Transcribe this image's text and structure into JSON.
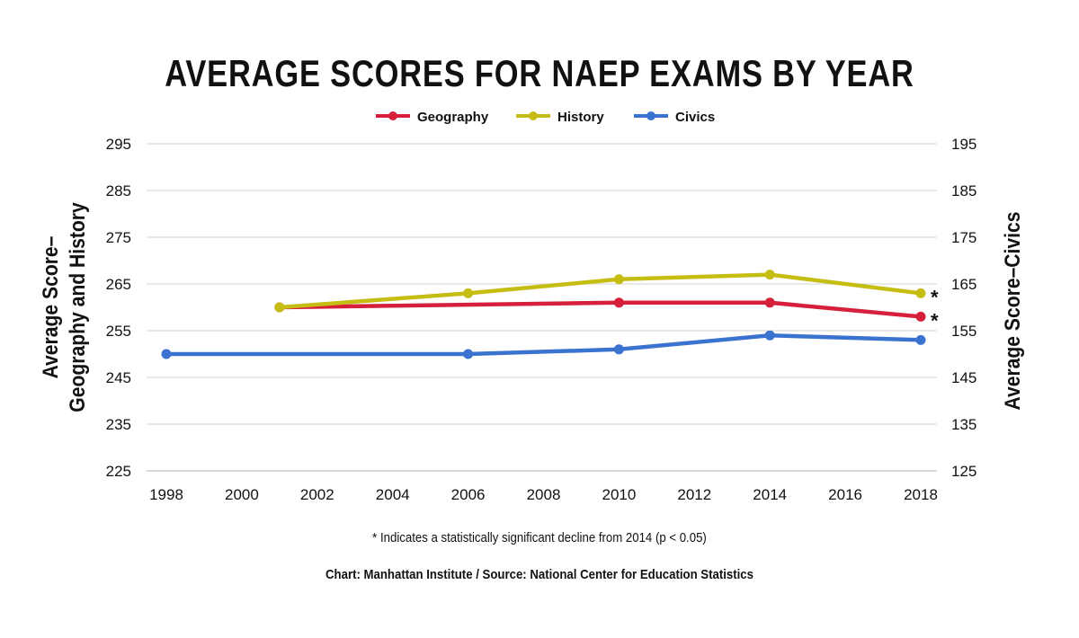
{
  "chart_data": {
    "type": "line",
    "title": "AVERAGE SCORES FOR NAEP EXAMS BY YEAR",
    "x_ticks": [
      1998,
      2000,
      2002,
      2004,
      2006,
      2008,
      2010,
      2012,
      2014,
      2016,
      2018
    ],
    "xlim": [
      1998,
      2018
    ],
    "left_axis": {
      "label_lines": [
        "Average Score–",
        "Geography and History"
      ],
      "ylim": [
        225,
        295
      ],
      "ticks": [
        225,
        235,
        245,
        255,
        265,
        275,
        285,
        295
      ]
    },
    "right_axis": {
      "label": "Average Score–Civics",
      "ylim": [
        125,
        195
      ],
      "ticks": [
        125,
        135,
        145,
        155,
        165,
        175,
        185,
        195
      ]
    },
    "grid": true,
    "legend_position": "top-center",
    "series": [
      {
        "name": "Geography",
        "color": "#d61f3a",
        "axis": "left",
        "points": [
          [
            2001,
            260
          ],
          [
            2010,
            261
          ],
          [
            2014,
            261
          ],
          [
            2018,
            258
          ]
        ],
        "annotation": "*"
      },
      {
        "name": "History",
        "color": "#c6bd14",
        "axis": "left",
        "points": [
          [
            2001,
            260
          ],
          [
            2006,
            263
          ],
          [
            2010,
            266
          ],
          [
            2014,
            267
          ],
          [
            2018,
            263
          ]
        ],
        "annotation": "*"
      },
      {
        "name": "Civics",
        "color": "#3a72d0",
        "axis": "right",
        "points": [
          [
            1998,
            150
          ],
          [
            2006,
            150
          ],
          [
            2010,
            151
          ],
          [
            2014,
            154
          ],
          [
            2018,
            153
          ]
        ]
      }
    ]
  },
  "footnote": "* Indicates a statistically significant decline from 2014 (p < 0.05)",
  "credit": "Chart: Manhattan Institute  /  Source: National Center for Education Statistics"
}
